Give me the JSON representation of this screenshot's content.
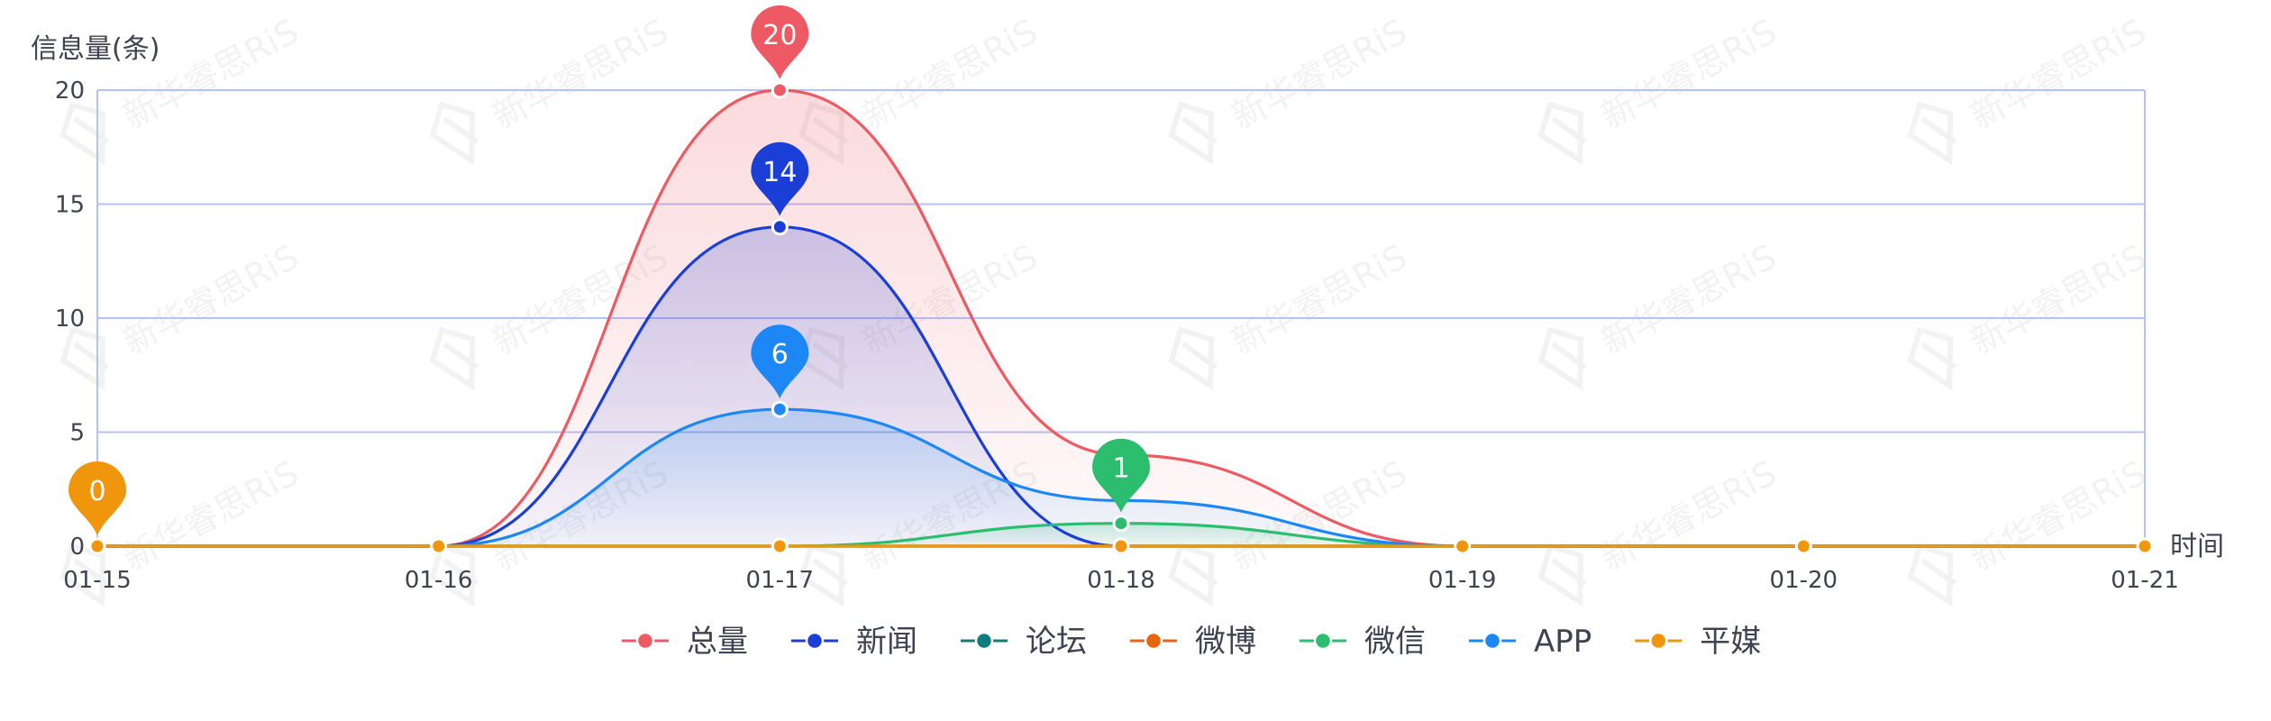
{
  "chart_data": {
    "type": "line",
    "title": "",
    "ylabel": "信息量(条)",
    "xlabel": "时间",
    "categories": [
      "01-15",
      "01-16",
      "01-17",
      "01-18",
      "01-19",
      "01-20",
      "01-21"
    ],
    "ylim": [
      0,
      20
    ],
    "yticks": [
      0,
      5,
      10,
      15,
      20
    ],
    "grid": true,
    "smooth": true,
    "legend_position": "bottom",
    "series": [
      {
        "name": "总量",
        "color": "#ee5a63",
        "values": [
          0,
          0,
          20,
          4,
          0,
          0,
          0
        ],
        "area": true
      },
      {
        "name": "新闻",
        "color": "#1b3fd6",
        "values": [
          0,
          0,
          14,
          0,
          0,
          0,
          0
        ],
        "area": true
      },
      {
        "name": "论坛",
        "color": "#127b7c",
        "values": [
          0,
          0,
          0,
          0,
          0,
          0,
          0
        ],
        "area": false
      },
      {
        "name": "微博",
        "color": "#e8640d",
        "values": [
          0,
          0,
          0,
          0,
          0,
          0,
          0
        ],
        "area": false
      },
      {
        "name": "微信",
        "color": "#2dbd6e",
        "values": [
          0,
          0,
          0,
          1,
          0,
          0,
          0
        ],
        "area": true
      },
      {
        "name": "APP",
        "color": "#1c87f5",
        "values": [
          0,
          0,
          6,
          2,
          0,
          0,
          0
        ],
        "area": true
      },
      {
        "name": "平媒",
        "color": "#f0960c",
        "values": [
          0,
          0,
          0,
          0,
          0,
          0,
          0
        ],
        "area": false
      }
    ],
    "markers": [
      {
        "series": "总量",
        "category": "01-17",
        "label": "20"
      },
      {
        "series": "新闻",
        "category": "01-17",
        "label": "14"
      },
      {
        "series": "APP",
        "category": "01-17",
        "label": "6"
      },
      {
        "series": "微信",
        "category": "01-18",
        "label": "1"
      },
      {
        "series": "平媒",
        "category": "01-15",
        "label": "0"
      }
    ],
    "watermark": "新华睿思RiS"
  }
}
